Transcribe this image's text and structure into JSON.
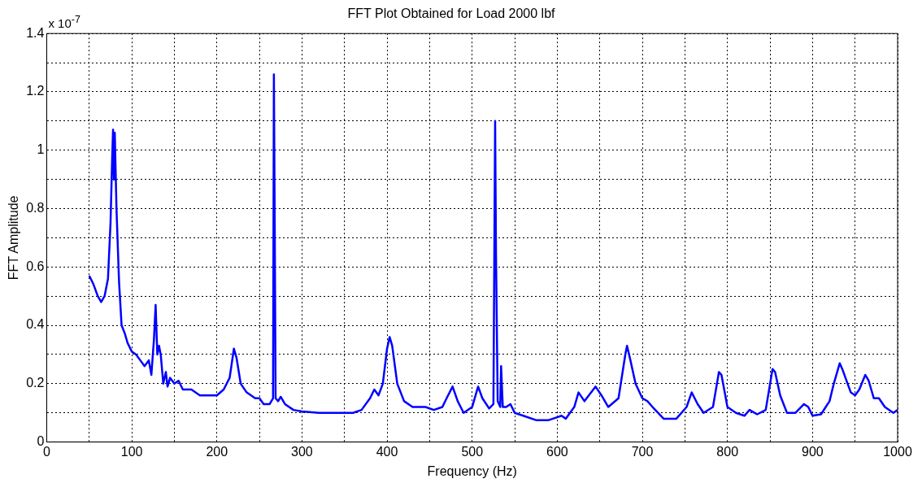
{
  "chart_data": {
    "type": "line",
    "title": "FFT Plot Obtained for Load 2000 lbf",
    "xlabel": "Frequency (Hz)",
    "ylabel": "FFT Amplitude",
    "annotations": [
      "x 10$^{-7}$"
    ],
    "x": [
      50,
      55,
      60,
      64,
      68,
      72,
      75,
      77,
      78,
      79,
      80,
      82,
      85,
      88,
      92,
      95,
      100,
      105,
      110,
      115,
      120,
      123,
      126,
      128,
      130,
      132,
      134,
      137,
      140,
      142,
      145,
      150,
      155,
      160,
      170,
      180,
      190,
      200,
      208,
      215,
      220,
      223,
      228,
      235,
      245,
      250,
      255,
      262,
      266,
      267,
      268,
      269,
      272,
      275,
      280,
      290,
      300,
      320,
      340,
      360,
      370,
      380,
      385,
      390,
      395,
      400,
      403,
      406,
      412,
      420,
      430,
      440,
      445,
      455,
      465,
      470,
      477,
      483,
      490,
      500,
      507,
      512,
      520,
      525,
      527,
      528,
      530,
      533,
      534,
      536,
      540,
      545,
      550,
      560,
      575,
      590,
      600,
      605,
      610,
      620,
      625,
      632,
      645,
      652,
      660,
      672,
      680,
      682,
      686,
      692,
      700,
      706,
      712,
      725,
      740,
      752,
      758,
      765,
      772,
      783,
      790,
      793,
      800,
      810,
      820,
      826,
      835,
      845,
      853,
      856,
      862,
      870,
      880,
      890,
      895,
      900,
      910,
      920,
      925,
      932,
      935,
      945,
      950,
      955,
      962,
      966,
      972,
      978,
      985,
      995,
      1000
    ],
    "series": [
      {
        "color": "#0000ff",
        "values": [
          0.57,
          0.54,
          0.5,
          0.48,
          0.5,
          0.56,
          0.75,
          0.98,
          1.07,
          0.9,
          1.06,
          0.8,
          0.55,
          0.4,
          0.37,
          0.34,
          0.31,
          0.3,
          0.28,
          0.26,
          0.28,
          0.23,
          0.35,
          0.47,
          0.3,
          0.33,
          0.3,
          0.2,
          0.24,
          0.19,
          0.22,
          0.2,
          0.21,
          0.18,
          0.18,
          0.16,
          0.16,
          0.16,
          0.18,
          0.22,
          0.32,
          0.29,
          0.2,
          0.17,
          0.15,
          0.15,
          0.13,
          0.13,
          0.15,
          1.26,
          0.73,
          0.15,
          0.14,
          0.155,
          0.13,
          0.11,
          0.105,
          0.1,
          0.1,
          0.1,
          0.11,
          0.15,
          0.18,
          0.16,
          0.2,
          0.32,
          0.36,
          0.33,
          0.2,
          0.14,
          0.12,
          0.12,
          0.12,
          0.11,
          0.12,
          0.15,
          0.19,
          0.14,
          0.1,
          0.12,
          0.19,
          0.15,
          0.115,
          0.13,
          1.1,
          0.65,
          0.14,
          0.12,
          0.26,
          0.12,
          0.12,
          0.13,
          0.1,
          0.09,
          0.075,
          0.075,
          0.085,
          0.09,
          0.08,
          0.12,
          0.17,
          0.14,
          0.19,
          0.16,
          0.12,
          0.15,
          0.3,
          0.33,
          0.28,
          0.2,
          0.15,
          0.14,
          0.12,
          0.08,
          0.08,
          0.12,
          0.17,
          0.13,
          0.1,
          0.12,
          0.24,
          0.23,
          0.12,
          0.1,
          0.09,
          0.11,
          0.095,
          0.11,
          0.25,
          0.24,
          0.16,
          0.1,
          0.1,
          0.13,
          0.12,
          0.09,
          0.095,
          0.14,
          0.2,
          0.27,
          0.25,
          0.17,
          0.16,
          0.18,
          0.23,
          0.21,
          0.15,
          0.15,
          0.12,
          0.1,
          0.11
        ]
      }
    ],
    "xlim": [
      0,
      1000
    ],
    "xticks": [
      0,
      {
        "value": 50,
        "label": null
      },
      100,
      {
        "value": 150,
        "label": null
      },
      200,
      {
        "value": 250,
        "label": null
      },
      300,
      {
        "value": 350,
        "label": null
      },
      400,
      {
        "value": 450,
        "label": null
      },
      500,
      {
        "value": 550,
        "label": null
      },
      600,
      {
        "value": 650,
        "label": null
      },
      700,
      {
        "value": 750,
        "label": null
      },
      800,
      {
        "value": 850,
        "label": null
      },
      900,
      {
        "value": 950,
        "label": null
      },
      1000
    ],
    "ylim": [
      0,
      1.4
    ],
    "yticks": [
      0,
      {
        "value": 0.1,
        "label": null
      },
      0.2,
      {
        "value": 0.3,
        "label": null
      },
      0.4,
      {
        "value": 0.5,
        "label": null
      },
      0.6,
      {
        "value": 0.7,
        "label": null
      },
      0.8,
      {
        "value": 0.9,
        "label": null
      },
      1,
      {
        "value": 1.1,
        "label": null
      },
      1.2,
      {
        "value": 1.3,
        "label": null
      },
      1.4
    ],
    "grid": true,
    "legend": false,
    "marker": "none",
    "line_style": "solid"
  }
}
